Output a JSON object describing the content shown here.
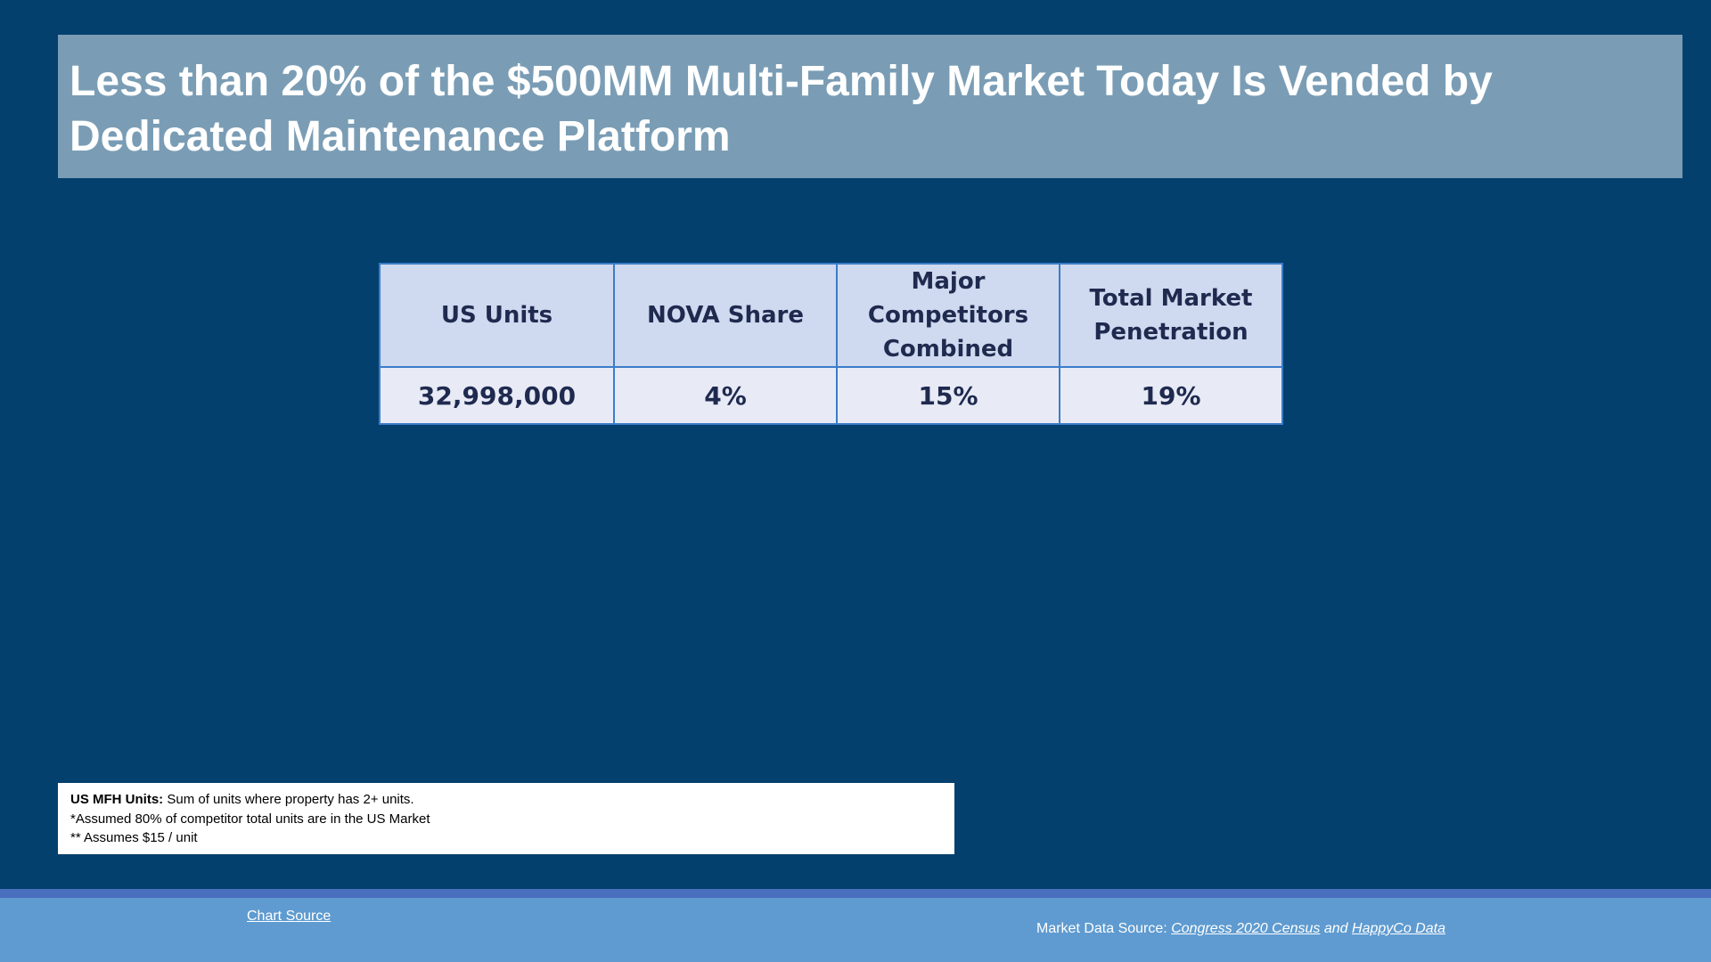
{
  "title": "Less than 20% of the $500MM Multi-Family Market Today Is Vended by Dedicated Maintenance Platform",
  "table": {
    "headers": [
      "US Units",
      "NOVA Share",
      "Major Competitors Combined",
      "Total Market Penetration"
    ],
    "rows": [
      [
        "32,998,000",
        "4%",
        "15%",
        "19%"
      ]
    ]
  },
  "notes": {
    "line_1_label": "US MFH Units:",
    "line_1_text": "Sum of units where property has 2+ units.",
    "line_2": "*Assumed 80% of competitor total units are in the US Market",
    "line_3": "** Assumes $15 / unit"
  },
  "footer": {
    "chart_source": "Chart Source",
    "market_prefix": "Market Data Source:",
    "link_1": "Congress 2020 Census",
    "joiner": "and",
    "link_2": "HappyCo Data"
  }
}
